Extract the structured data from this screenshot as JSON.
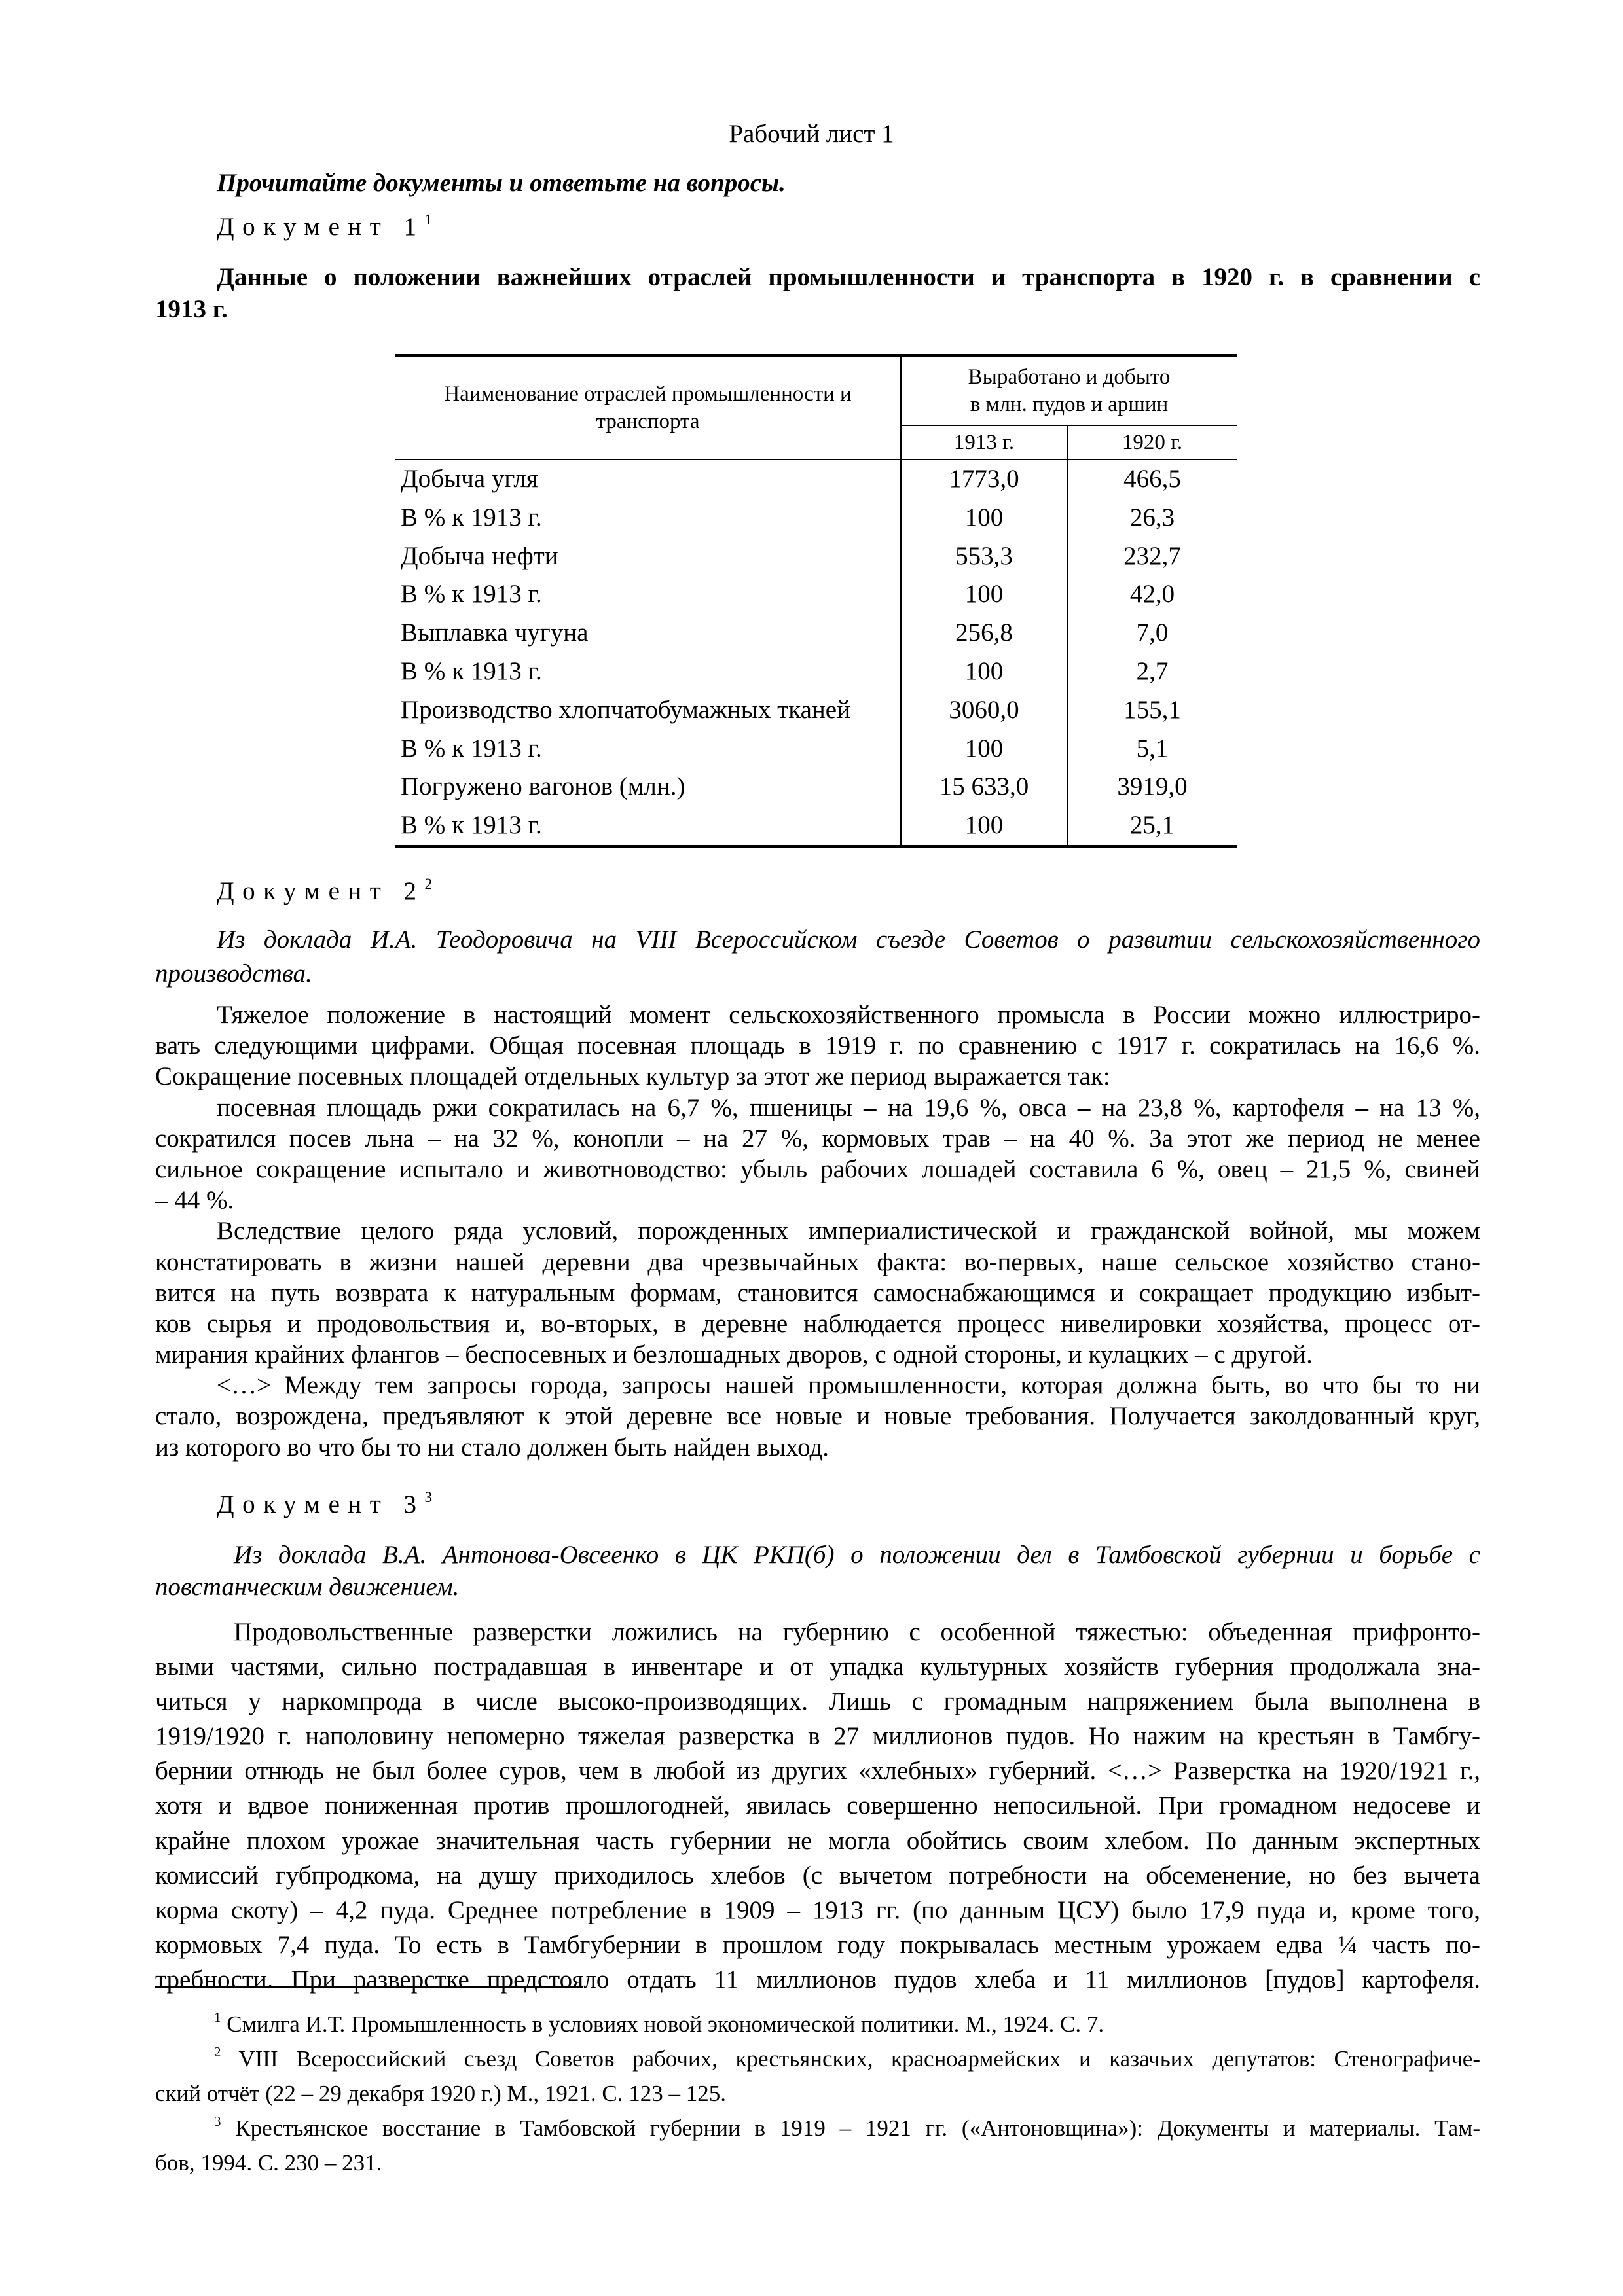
{
  "title": "Рабочий лист 1",
  "instruction": "Прочитайте документы и ответьте на вопросы.",
  "doc1": {
    "label": "Документ 1",
    "footnote_ref": "1",
    "heading_lines": [
      "Данные о положении важнейших отраслей промышленности и транспорта в 1920 г. в сравнении с",
      "1913 г."
    ],
    "table": {
      "col1_header_lines": [
        "Наименование отраслей промышленности и",
        "транспорта"
      ],
      "group_header_lines": [
        "Выработано и добыто",
        "в млн. пудов и аршин"
      ],
      "year_headers": [
        "1913 г.",
        "1920 г."
      ],
      "rows": [
        [
          "Добыча угля",
          "1773,0",
          "466,5"
        ],
        [
          "В % к 1913 г.",
          "100",
          "26,3"
        ],
        [
          "Добыча нефти",
          "553,3",
          "232,7"
        ],
        [
          "В % к 1913 г.",
          "100",
          "42,0"
        ],
        [
          "Выплавка чугуна",
          "256,8",
          "7,0"
        ],
        [
          "В % к 1913 г.",
          "100",
          "2,7"
        ],
        [
          "Производство хлопчатобумажных тканей",
          "3060,0",
          "155,1"
        ],
        [
          "В % к 1913 г.",
          "100",
          "5,1"
        ],
        [
          "Погружено вагонов (млн.)",
          "15 633,0",
          "3919,0"
        ],
        [
          "В % к 1913 г.",
          "100",
          "25,1"
        ]
      ]
    }
  },
  "doc2": {
    "label": "Документ 2",
    "footnote_ref": "2",
    "intro_lines": [
      "Из доклада И.А. Теодоровича на VIII Всероссийском съезде Советов о развитии сельскохозяйственного",
      "производства."
    ],
    "paragraphs": [
      [
        "Тяжелое положение в настоящий момент сельскохозяйственного промысла в России можно иллюстриро-",
        "вать следующими цифрами. Общая посевная площадь в 1919 г. по сравнению с 1917 г. сократилась на 16,6 %.",
        "Сокращение посевных площадей отдельных культур за этот же период выражается так:"
      ],
      [
        "посевная площадь ржи сократилась на 6,7 %, пшеницы – на 19,6 %, овса – на 23,8 %, картофеля – на 13 %,",
        "сократился посев льна – на 32 %, конопли – на 27 %, кормовых трав – на 40 %. За этот же период не менее",
        "сильное сокращение испытало и животноводство: убыль рабочих лошадей составила 6 %, овец – 21,5 %, свиней",
        "– 44 %."
      ],
      [
        "Вследствие целого ряда условий, порожденных империалистической и гражданской войной, мы можем",
        "констатировать в жизни нашей деревни два чрезвычайных факта: во-первых, наше сельское хозяйство стано-",
        "вится на путь возврата к натуральным формам, становится самоснабжающимся и сокращает продукцию избыт-",
        "ков сырья и продовольствия и, во-вторых, в деревне наблюдается процесс нивелировки хозяйства, процесс от-",
        "мирания крайних флангов – беспосевных и безлошадных дворов, с одной стороны, и кулацких – с другой."
      ],
      [
        "<…> Между тем запросы города, запросы нашей промышленности, которая должна быть, во что бы то ни",
        "стало, возрождена, предъявляют к этой деревне все новые и новые требования. Получается заколдованный круг,",
        "из которого во что бы то ни стало должен быть найден выход."
      ]
    ]
  },
  "doc3": {
    "label": "Документ 3",
    "footnote_ref": "3",
    "intro_lines": [
      "Из доклада В.А. Антонова-Овсеенко в ЦК РКП(б) о положении дел в Тамбовской губернии и борьбе с",
      "повстанческим движением."
    ],
    "paragraphs": [
      [
        "Продовольственные разверстки ложились на губернию с особенной тяжестью: объеденная прифронто-",
        "выми частями, сильно пострадавшая в инвентаре и от упадка культурных хозяйств губерния продолжала зна-",
        "читься у наркомпрода в числе высоко-производящих. Лишь с громадным напряжением была выполнена в",
        "1919/1920 г. наполовину непомерно тяжелая разверстка в 27 миллионов пудов. Но нажим на крестьян в Тамбгу-",
        "бернии отнюдь не был более суров, чем в любой из других «хлебных» губерний. <…> Разверстка на 1920/1921 г.,",
        "хотя и вдвое пониженная против прошлогодней, явилась совершенно непосильной. При громадном недосеве и",
        "крайне плохом урожае значительная часть губернии не могла обойтись своим хлебом. По данным экспертных",
        "комиссий губпродкома, на душу приходилось хлебов (с вычетом потребности на обсеменение, но без вычета",
        "корма скоту) – 4,2 пуда. Среднее потребление в 1909 – 1913 гг. (по данным ЦСУ) было 17,9 пуда и, кроме того,",
        "кормовых 7,4 пуда. То есть в Тамбгубернии в прошлом году покрывалась местным урожаем едва ¼ часть по-",
        "требности. При разверстке предстояло отдать 11 миллионов пудов хлеба и 11 миллионов [пудов] картофеля."
      ]
    ]
  },
  "footnotes": [
    {
      "ref": "1",
      "lines": [
        "Смилга И.Т. Промышленность в условиях новой экономической политики. М., 1924. С. 7."
      ]
    },
    {
      "ref": "2",
      "lines": [
        "VIII Всероссийский съезд Советов рабочих, крестьянских, красноармейских и казачьих депутатов: Стенографиче-",
        "ский отчёт (22 – 29 декабря 1920 г.) М., 1921. С. 123 – 125."
      ]
    },
    {
      "ref": "3",
      "lines": [
        "Крестьянское восстание в Тамбовской губернии в 1919 – 1921 гг. («Антоновщина»): Документы и материалы. Там-",
        "бов, 1994. С. 230 – 231."
      ]
    }
  ]
}
